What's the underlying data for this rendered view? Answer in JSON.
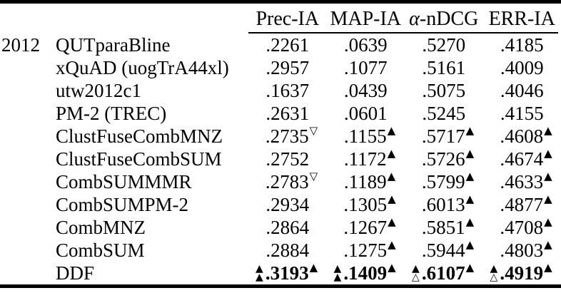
{
  "page": {
    "background": "#ffffff",
    "text_color": "#000000"
  },
  "table": {
    "year_label": "2012",
    "headers": [
      {
        "label": "Prec-IA"
      },
      {
        "label": "MAP-IA"
      },
      {
        "label": "α-nDCG"
      },
      {
        "label": "ERR-IA"
      }
    ],
    "symbols": {
      "filled_up_triangle": "▲",
      "hollow_up_triangle": "△",
      "hollow_down_triangle": "▽"
    },
    "rows": [
      {
        "label": "QUTparaBline",
        "bold": false,
        "cells": [
          {
            "value": ".2261",
            "sup": "",
            "prefix": []
          },
          {
            "value": ".0639",
            "sup": "",
            "prefix": []
          },
          {
            "value": ".5270",
            "sup": "",
            "prefix": []
          },
          {
            "value": ".4185",
            "sup": "",
            "prefix": []
          }
        ]
      },
      {
        "label": "xQuAD (uogTrA44xl)",
        "bold": false,
        "cells": [
          {
            "value": ".2957",
            "sup": "",
            "prefix": []
          },
          {
            "value": ".1077",
            "sup": "",
            "prefix": []
          },
          {
            "value": ".5161",
            "sup": "",
            "prefix": []
          },
          {
            "value": ".4009",
            "sup": "",
            "prefix": []
          }
        ]
      },
      {
        "label": "utw2012c1",
        "bold": false,
        "cells": [
          {
            "value": ".1637",
            "sup": "",
            "prefix": []
          },
          {
            "value": ".0439",
            "sup": "",
            "prefix": []
          },
          {
            "value": ".5075",
            "sup": "",
            "prefix": []
          },
          {
            "value": ".4046",
            "sup": "",
            "prefix": []
          }
        ]
      },
      {
        "label": "PM-2 (TREC)",
        "bold": false,
        "cells": [
          {
            "value": ".2631",
            "sup": "",
            "prefix": []
          },
          {
            "value": ".0601",
            "sup": "",
            "prefix": []
          },
          {
            "value": ".5245",
            "sup": "",
            "prefix": []
          },
          {
            "value": ".4155",
            "sup": "",
            "prefix": []
          }
        ]
      },
      {
        "label": "ClustFuseCombMNZ",
        "bold": false,
        "cells": [
          {
            "value": ".2735",
            "sup": "▽",
            "prefix": []
          },
          {
            "value": ".1155",
            "sup": "▲",
            "prefix": []
          },
          {
            "value": ".5717",
            "sup": "▲",
            "prefix": []
          },
          {
            "value": ".4608",
            "sup": "▲",
            "prefix": []
          }
        ]
      },
      {
        "label": "ClustFuseCombSUM",
        "bold": false,
        "cells": [
          {
            "value": ".2752",
            "sup": "",
            "prefix": []
          },
          {
            "value": ".1172",
            "sup": "▲",
            "prefix": []
          },
          {
            "value": ".5726",
            "sup": "▲",
            "prefix": []
          },
          {
            "value": ".4674",
            "sup": "▲",
            "prefix": []
          }
        ]
      },
      {
        "label": "CombSUMMMR",
        "bold": false,
        "cells": [
          {
            "value": ".2783",
            "sup": "▽",
            "prefix": []
          },
          {
            "value": ".1189",
            "sup": "▲",
            "prefix": []
          },
          {
            "value": ".5799",
            "sup": "▲",
            "prefix": []
          },
          {
            "value": ".4633",
            "sup": "▲",
            "prefix": []
          }
        ]
      },
      {
        "label": "CombSUMPM-2",
        "bold": false,
        "cells": [
          {
            "value": ".2934",
            "sup": "",
            "prefix": []
          },
          {
            "value": ".1305",
            "sup": "▲",
            "prefix": []
          },
          {
            "value": ".6013",
            "sup": "▲",
            "prefix": []
          },
          {
            "value": ".4877",
            "sup": "▲",
            "prefix": []
          }
        ]
      },
      {
        "label": "CombMNZ",
        "bold": false,
        "cells": [
          {
            "value": ".2864",
            "sup": "",
            "prefix": []
          },
          {
            "value": ".1267",
            "sup": "▲",
            "prefix": []
          },
          {
            "value": ".5851",
            "sup": "▲",
            "prefix": []
          },
          {
            "value": ".4708",
            "sup": "▲",
            "prefix": []
          }
        ]
      },
      {
        "label": "CombSUM",
        "bold": false,
        "cells": [
          {
            "value": ".2884",
            "sup": "",
            "prefix": []
          },
          {
            "value": ".1275",
            "sup": "▲",
            "prefix": []
          },
          {
            "value": ".5944",
            "sup": "▲",
            "prefix": []
          },
          {
            "value": ".4803",
            "sup": "▲",
            "prefix": []
          }
        ]
      },
      {
        "label": "DDF",
        "bold": true,
        "cells": [
          {
            "value": ".3193",
            "sup": "▲",
            "prefix": [
              "▲",
              "▲"
            ]
          },
          {
            "value": ".1409",
            "sup": "▲",
            "prefix": [
              "▲",
              "▲"
            ]
          },
          {
            "value": ".6107",
            "sup": "▲",
            "prefix": [
              "▲",
              "△"
            ]
          },
          {
            "value": ".4919",
            "sup": "▲",
            "prefix": [
              "▲",
              "△"
            ]
          }
        ]
      }
    ]
  }
}
